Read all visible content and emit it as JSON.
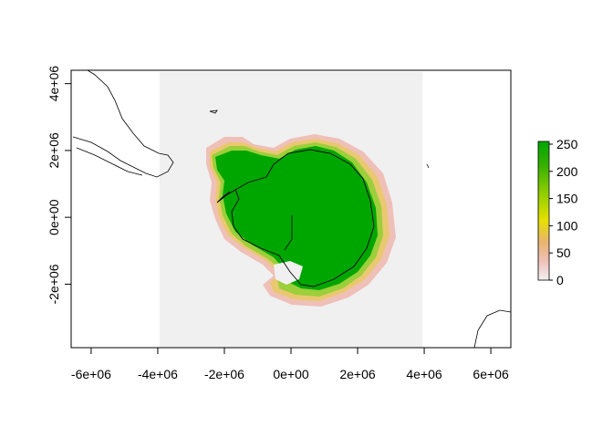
{
  "chart_data": {
    "type": "heatmap",
    "title": "",
    "xlabel": "",
    "ylabel": "",
    "x_ticks": [
      {
        "value": -6000000,
        "label": "-6e+06"
      },
      {
        "value": -4000000,
        "label": "-4e+06"
      },
      {
        "value": -2000000,
        "label": "-2e+06"
      },
      {
        "value": 0,
        "label": "0e+00"
      },
      {
        "value": 2000000,
        "label": "2e+06"
      },
      {
        "value": 4000000,
        "label": "4e+06"
      },
      {
        "value": 6000000,
        "label": "6e+06"
      }
    ],
    "y_ticks": [
      {
        "value": -2000000,
        "label": "-2e+06"
      },
      {
        "value": 0,
        "label": "0e+00"
      },
      {
        "value": 2000000,
        "label": "2e+06"
      },
      {
        "value": 4000000,
        "label": "4e+06"
      }
    ],
    "xlim": [
      -6600000,
      6600000
    ],
    "ylim": [
      -3900000,
      4400000
    ],
    "raster_extent": {
      "xmin": -3950000,
      "xmax": 3950000,
      "ymin": -3950000,
      "ymax": 4350000
    },
    "raster_nodata_color": "#f0f0f0",
    "colorbar": {
      "ticks": [
        {
          "value": 0,
          "label": "0"
        },
        {
          "value": 50,
          "label": "50"
        },
        {
          "value": 100,
          "label": "100"
        },
        {
          "value": 150,
          "label": "150"
        },
        {
          "value": 200,
          "label": "200"
        },
        {
          "value": 250,
          "label": "250"
        }
      ],
      "range": [
        0,
        255
      ],
      "stops": [
        {
          "value": 0,
          "color": "#f2f2f2"
        },
        {
          "value": 35,
          "color": "#efc0b8"
        },
        {
          "value": 70,
          "color": "#e9b46f"
        },
        {
          "value": 110,
          "color": "#e6e000"
        },
        {
          "value": 160,
          "color": "#8fce00"
        },
        {
          "value": 210,
          "color": "#38b000"
        },
        {
          "value": 255,
          "color": "#00a600"
        }
      ]
    },
    "colors": {
      "ice_max": "#00a600",
      "outline": "#000000"
    },
    "grid": false,
    "legend": "right"
  }
}
